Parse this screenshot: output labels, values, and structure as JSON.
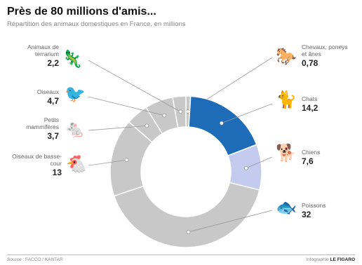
{
  "title": "Près de 80 millions d'amis...",
  "subtitle": "Répartition des animaux domestiques en France, en millions",
  "footer": {
    "source": "Source : FACCO / KANTAR",
    "credit_prefix": "Infographie",
    "credit_brand": "LE FIGARO"
  },
  "colors": {
    "chats": "#1e6bb8",
    "chiens": "#c3cbef",
    "other": "#c8c8c8",
    "line": "#999999"
  },
  "chart_data": {
    "type": "pie",
    "donut": true,
    "unit": "millions",
    "slices": [
      {
        "key": "chevaux",
        "label": "Chevaux, poneys et ânes",
        "value": 0.78,
        "display": "0,78",
        "icon": "horse-icon",
        "glyph": "🐎"
      },
      {
        "key": "chats",
        "label": "Chats",
        "value": 14.2,
        "display": "14,2",
        "icon": "cat-icon",
        "glyph": "🐈"
      },
      {
        "key": "chiens",
        "label": "Chiens",
        "value": 7.6,
        "display": "7,6",
        "icon": "dog-icon",
        "glyph": "🐕"
      },
      {
        "key": "poissons",
        "label": "Poissons",
        "value": 32,
        "display": "32",
        "icon": "fish-icon",
        "glyph": "🐟"
      },
      {
        "key": "volaille",
        "label": "Oiseaux de basse-cour",
        "value": 13,
        "display": "13",
        "icon": "hen-icon",
        "glyph": "🐔"
      },
      {
        "key": "rongeurs",
        "label": "Petits mammifères",
        "value": 3.7,
        "display": "3,7",
        "icon": "rodent-icon",
        "glyph": "🐁"
      },
      {
        "key": "oiseaux",
        "label": "Oiseaux",
        "value": 4.7,
        "display": "4,7",
        "icon": "bird-icon",
        "glyph": "🐦"
      },
      {
        "key": "terrarium",
        "label": "Animaux de terrarium",
        "value": 2.2,
        "display": "2,2",
        "icon": "lizard-icon",
        "glyph": "🦎"
      }
    ]
  }
}
